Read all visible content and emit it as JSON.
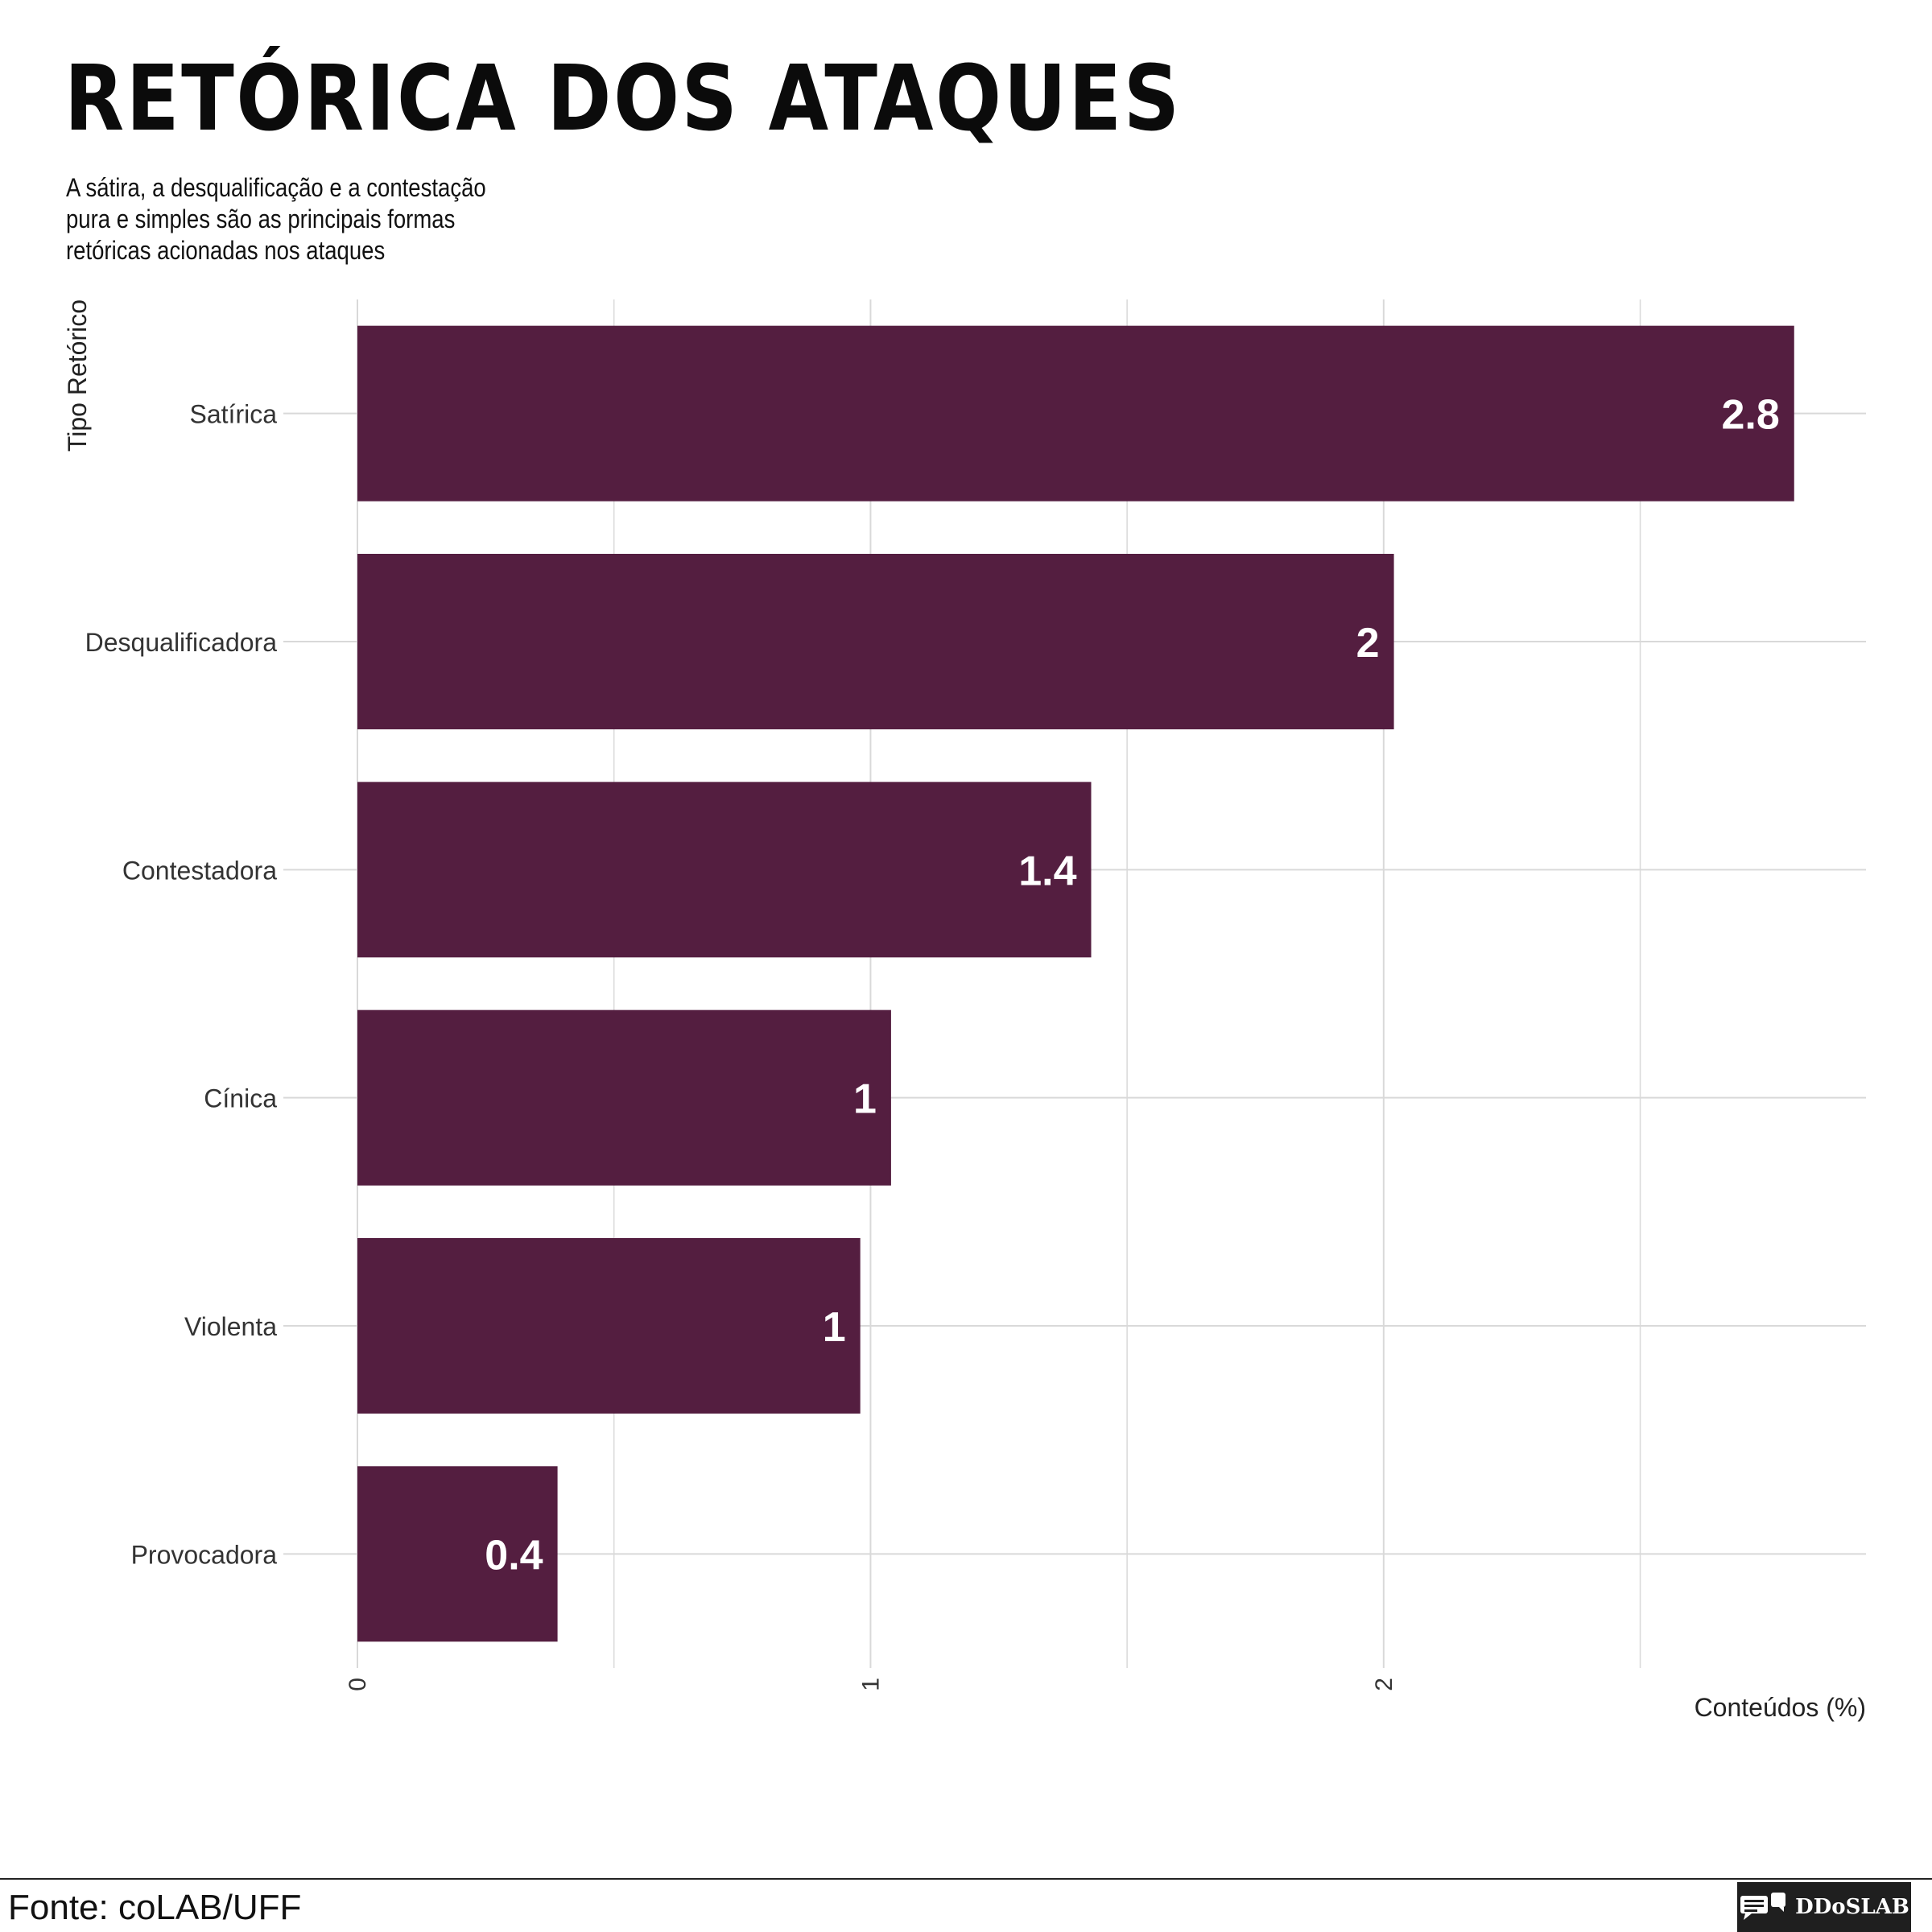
{
  "header": {
    "title": "RETÓRICA DOS ATAQUES",
    "subtitle": "A sátira, a desqualificação e a contestação pura e simples são as principais formas retóricas acionadas nos ataques"
  },
  "footer": {
    "source": "Fonte: coLAB/UFF",
    "logo_text": "DDoSLAB"
  },
  "colors": {
    "bar": "#541e40",
    "grid": "#d9d9d9",
    "label_text": "#ffffff"
  },
  "chart_data": {
    "type": "bar",
    "orientation": "horizontal",
    "categories": [
      "Satírica",
      "Desqualificadora",
      "Contestadora",
      "Cínica",
      "Violenta",
      "Provocadora"
    ],
    "values": [
      2.8,
      2.02,
      1.43,
      1.04,
      0.98,
      0.39
    ],
    "data_labels": [
      "2.8",
      "2",
      "1.4",
      "1",
      "1",
      "0.4"
    ],
    "xlabel": "Conteúdos (%)",
    "ylabel": "Tipo Retórico",
    "xlim": [
      0,
      2.94
    ],
    "x_ticks": [
      0,
      1,
      2
    ],
    "x_tick_labels": [
      "0",
      "1",
      "2"
    ],
    "grid": true,
    "legend": "none"
  }
}
